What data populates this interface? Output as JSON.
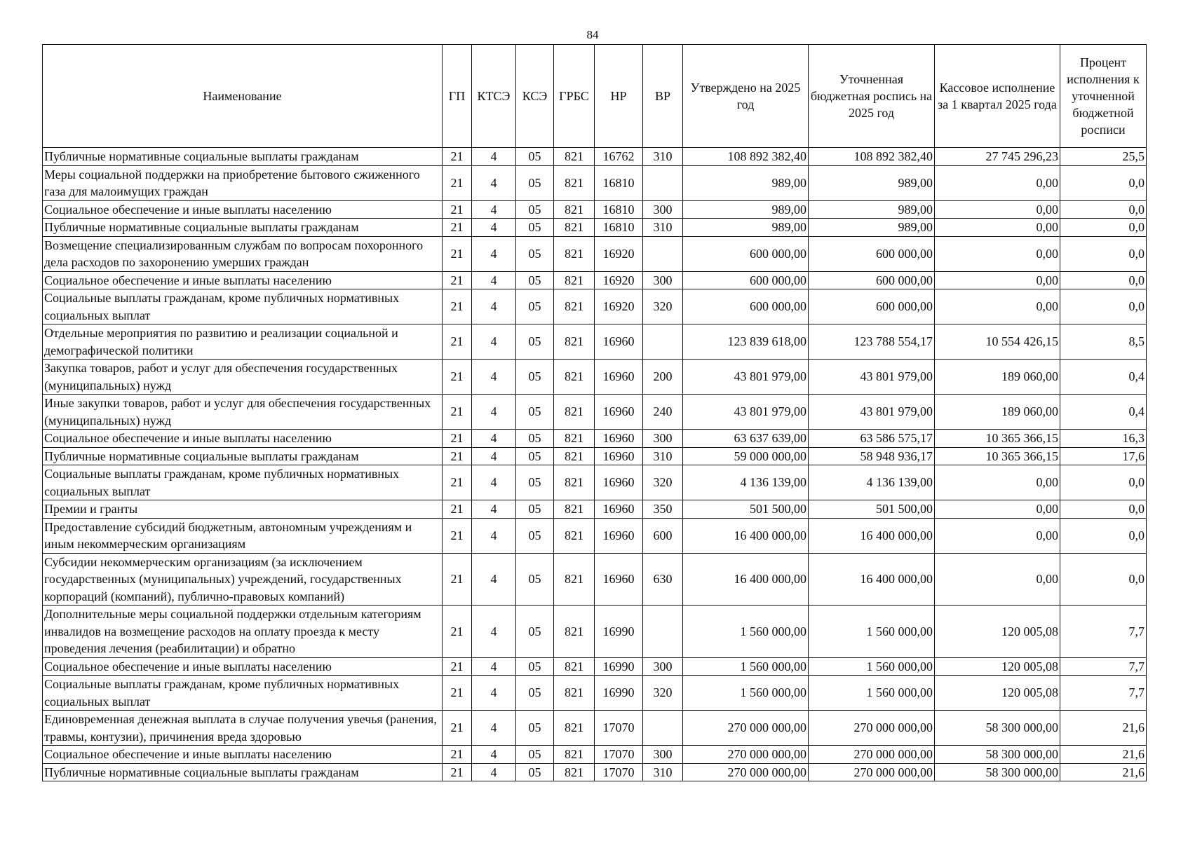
{
  "page_number": "84",
  "headers": [
    "Наименование",
    "ГП",
    "КТСЭ",
    "КСЭ",
    "ГРБС",
    "НР",
    "ВР",
    "Утверждено на 2025 год",
    "Уточненная бюджетная роспись на 2025 год",
    "Кассовое исполнение за 1 квартал 2025 года",
    "Процент исполнения к уточненной бюджетной росписи"
  ],
  "rows": [
    [
      "Публичные нормативные социальные выплаты гражданам",
      "21",
      "4",
      "05",
      "821",
      "16762",
      "310",
      "108 892 382,40",
      "108 892 382,40",
      "27 745 296,23",
      "25,5"
    ],
    [
      "Меры социальной поддержки на приобретение бытового сжиженного газа для малоимущих граждан",
      "21",
      "4",
      "05",
      "821",
      "16810",
      "",
      "989,00",
      "989,00",
      "0,00",
      "0,0"
    ],
    [
      "Социальное обеспечение и иные выплаты населению",
      "21",
      "4",
      "05",
      "821",
      "16810",
      "300",
      "989,00",
      "989,00",
      "0,00",
      "0,0"
    ],
    [
      "Публичные нормативные социальные выплаты гражданам",
      "21",
      "4",
      "05",
      "821",
      "16810",
      "310",
      "989,00",
      "989,00",
      "0,00",
      "0,0"
    ],
    [
      "Возмещение специализированным службам по вопросам похоронного дела расходов по захоронению умерших граждан",
      "21",
      "4",
      "05",
      "821",
      "16920",
      "",
      "600 000,00",
      "600 000,00",
      "0,00",
      "0,0"
    ],
    [
      "Социальное обеспечение и иные выплаты населению",
      "21",
      "4",
      "05",
      "821",
      "16920",
      "300",
      "600 000,00",
      "600 000,00",
      "0,00",
      "0,0"
    ],
    [
      "Социальные выплаты гражданам, кроме публичных нормативных социальных выплат",
      "21",
      "4",
      "05",
      "821",
      "16920",
      "320",
      "600 000,00",
      "600 000,00",
      "0,00",
      "0,0"
    ],
    [
      "Отдельные мероприятия по развитию и реализации социальной и демографической политики",
      "21",
      "4",
      "05",
      "821",
      "16960",
      "",
      "123 839 618,00",
      "123 788 554,17",
      "10 554 426,15",
      "8,5"
    ],
    [
      "Закупка товаров, работ и услуг для обеспечения государственных (муниципальных) нужд",
      "21",
      "4",
      "05",
      "821",
      "16960",
      "200",
      "43 801 979,00",
      "43 801 979,00",
      "189 060,00",
      "0,4"
    ],
    [
      "Иные закупки товаров, работ и услуг для обеспечения государственных (муниципальных) нужд",
      "21",
      "4",
      "05",
      "821",
      "16960",
      "240",
      "43 801 979,00",
      "43 801 979,00",
      "189 060,00",
      "0,4"
    ],
    [
      "Социальное обеспечение и иные выплаты населению",
      "21",
      "4",
      "05",
      "821",
      "16960",
      "300",
      "63 637 639,00",
      "63 586 575,17",
      "10 365 366,15",
      "16,3"
    ],
    [
      "Публичные нормативные социальные выплаты гражданам",
      "21",
      "4",
      "05",
      "821",
      "16960",
      "310",
      "59 000 000,00",
      "58 948 936,17",
      "10 365 366,15",
      "17,6"
    ],
    [
      "Социальные выплаты гражданам, кроме публичных нормативных социальных выплат",
      "21",
      "4",
      "05",
      "821",
      "16960",
      "320",
      "4 136 139,00",
      "4 136 139,00",
      "0,00",
      "0,0"
    ],
    [
      "Премии и гранты",
      "21",
      "4",
      "05",
      "821",
      "16960",
      "350",
      "501 500,00",
      "501 500,00",
      "0,00",
      "0,0"
    ],
    [
      "Предоставление субсидий бюджетным, автономным учреждениям и иным некоммерческим организациям",
      "21",
      "4",
      "05",
      "821",
      "16960",
      "600",
      "16 400 000,00",
      "16 400 000,00",
      "0,00",
      "0,0"
    ],
    [
      "Субсидии некоммерческим организациям (за исключением государственных (муниципальных) учреждений, государственных корпораций (компаний), публично-правовых компаний)",
      "21",
      "4",
      "05",
      "821",
      "16960",
      "630",
      "16 400 000,00",
      "16 400 000,00",
      "0,00",
      "0,0"
    ],
    [
      "Дополнительные меры социальной поддержки отдельным категориям инвалидов на возмещение расходов на оплату проезда к месту проведения лечения (реабилитации) и обратно",
      "21",
      "4",
      "05",
      "821",
      "16990",
      "",
      "1 560 000,00",
      "1 560 000,00",
      "120 005,08",
      "7,7"
    ],
    [
      "Социальное обеспечение и иные выплаты населению",
      "21",
      "4",
      "05",
      "821",
      "16990",
      "300",
      "1 560 000,00",
      "1 560 000,00",
      "120 005,08",
      "7,7"
    ],
    [
      "Социальные выплаты гражданам, кроме публичных нормативных социальных выплат",
      "21",
      "4",
      "05",
      "821",
      "16990",
      "320",
      "1 560 000,00",
      "1 560 000,00",
      "120 005,08",
      "7,7"
    ],
    [
      "Единовременная денежная выплата в случае получения увечья (ранения, травмы, контузии), причинения вреда здоровью",
      "21",
      "4",
      "05",
      "821",
      "17070",
      "",
      "270 000 000,00",
      "270 000 000,00",
      "58 300 000,00",
      "21,6"
    ],
    [
      "Социальное обеспечение и иные выплаты населению",
      "21",
      "4",
      "05",
      "821",
      "17070",
      "300",
      "270 000 000,00",
      "270 000 000,00",
      "58 300 000,00",
      "21,6"
    ],
    [
      "Публичные нормативные социальные выплаты гражданам",
      "21",
      "4",
      "05",
      "821",
      "17070",
      "310",
      "270 000 000,00",
      "270 000 000,00",
      "58 300 000,00",
      "21,6"
    ]
  ]
}
